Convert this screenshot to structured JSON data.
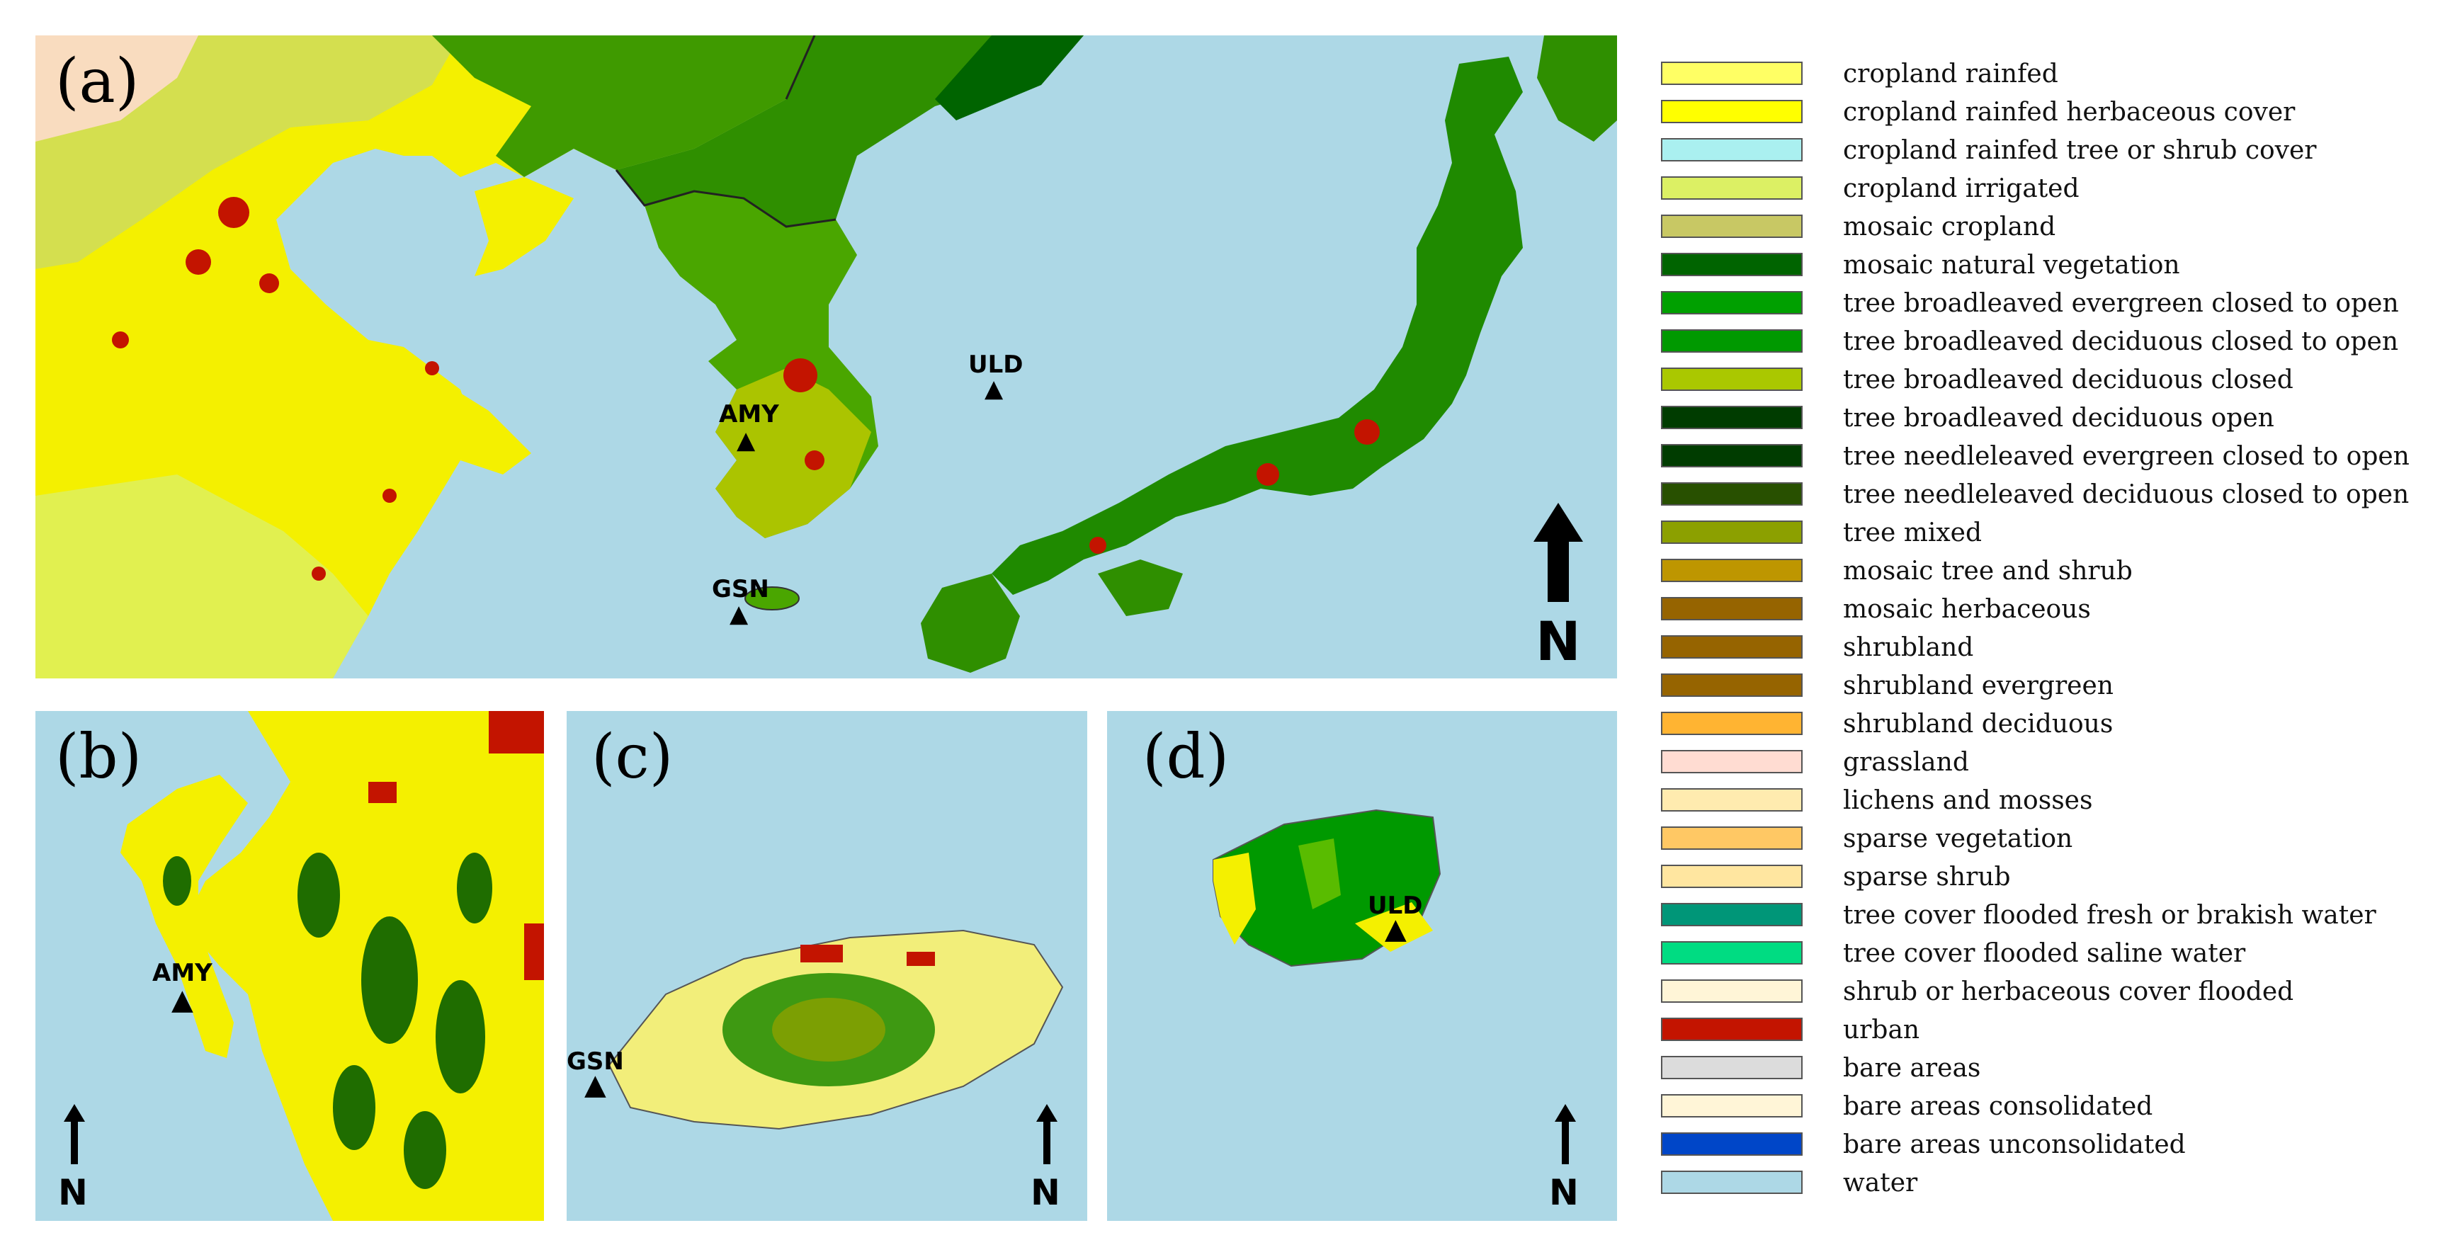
{
  "panels": {
    "a": {
      "label": "(a)",
      "stations": [
        "AMY",
        "ULD",
        "GSN"
      ],
      "north": "N"
    },
    "b": {
      "label": "(b)",
      "stations": [
        "AMY"
      ],
      "north": "N"
    },
    "c": {
      "label": "(c)",
      "stations": [
        "GSN"
      ],
      "north": "N"
    },
    "d": {
      "label": "(d)",
      "stations": [
        "ULD"
      ],
      "north": "N"
    }
  },
  "legend": [
    {
      "label": "cropland rainfed",
      "color": "#ffff64"
    },
    {
      "label": "cropland rainfed herbaceous cover",
      "color": "#ffff00"
    },
    {
      "label": "cropland rainfed tree or shrub cover",
      "color": "#aaf0f0"
    },
    {
      "label": "cropland irrigated",
      "color": "#dcf064"
    },
    {
      "label": "mosaic cropland",
      "color": "#c8c864"
    },
    {
      "label": "mosaic natural vegetation",
      "color": "#006400"
    },
    {
      "label": "tree broadleaved evergreen closed to open",
      "color": "#00a000"
    },
    {
      "label": "tree broadleaved deciduous closed to open",
      "color": "#009900"
    },
    {
      "label": "tree broadleaved deciduous closed",
      "color": "#aac800"
    },
    {
      "label": "tree broadleaved deciduous open",
      "color": "#003c00"
    },
    {
      "label": "tree needleleaved evergreen closed to open",
      "color": "#003c00"
    },
    {
      "label": "tree needleleaved deciduous closed to open",
      "color": "#285000"
    },
    {
      "label": "tree mixed",
      "color": "#8ca000"
    },
    {
      "label": "mosaic tree and shrub",
      "color": "#be9600"
    },
    {
      "label": "mosaic herbaceous",
      "color": "#966400"
    },
    {
      "label": "shrubland",
      "color": "#966400"
    },
    {
      "label": "shrubland evergreen",
      "color": "#966400"
    },
    {
      "label": "shrubland deciduous",
      "color": "#ffb432"
    },
    {
      "label": "grassland",
      "color": "#ffdcd2"
    },
    {
      "label": "lichens and mosses",
      "color": "#ffebaf"
    },
    {
      "label": "sparse vegetation",
      "color": "#ffc864"
    },
    {
      "label": "sparse shrub",
      "color": "#ffe6a0"
    },
    {
      "label": "tree cover flooded fresh or brakish water",
      "color": "#009678"
    },
    {
      "label": "tree cover flooded saline water",
      "color": "#00dc82"
    },
    {
      "label": "shrub or herbaceous cover flooded",
      "color": "#fff5d7"
    },
    {
      "label": "urban",
      "color": "#c31400"
    },
    {
      "label": "bare areas",
      "color": "#dcdcdc"
    },
    {
      "label": "bare areas consolidated",
      "color": "#fff5d7"
    },
    {
      "label": "bare areas unconsolidated",
      "color": "#0046c8"
    },
    {
      "label": "water",
      "color": "#add8e6"
    }
  ]
}
